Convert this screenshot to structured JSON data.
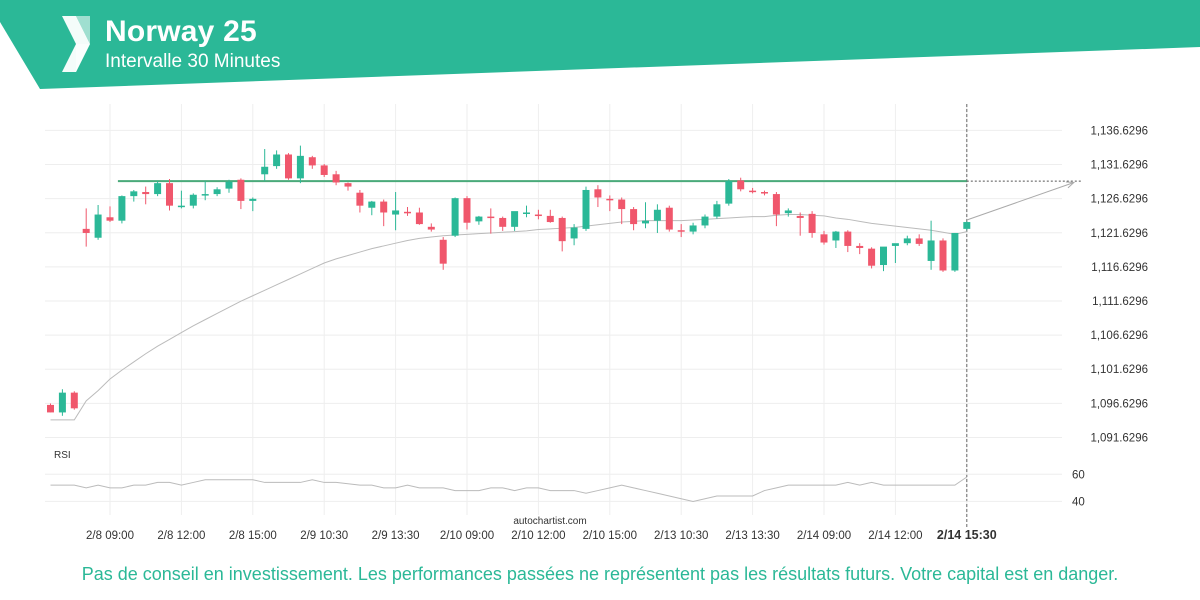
{
  "header": {
    "title": "Norway 25",
    "subtitle": "Intervalle 30 Minutes",
    "brand_color": "#2bb897"
  },
  "watermark": "autochartist.com",
  "disclaimer": "Pas de conseil en investissement. Les performances passées ne représentent pas les résultats futurs. Votre capital est en danger.",
  "chart_data": {
    "type": "candlestick",
    "price_axis": {
      "ticks": [
        "1,136.6296",
        "1,131.6296",
        "1,126.6296",
        "1,121.6296",
        "1,116.6296",
        "1,111.6296",
        "1,106.6296",
        "1,101.6296",
        "1,096.6296",
        "1,091.6296"
      ],
      "tick_values": [
        1136.6296,
        1131.6296,
        1126.6296,
        1121.6296,
        1116.6296,
        1111.6296,
        1106.6296,
        1101.6296,
        1096.6296,
        1091.6296
      ],
      "ylim": [
        1089.5,
        1140.5
      ]
    },
    "x_axis": {
      "labels": [
        "2/8 09:00",
        "2/8 12:00",
        "2/8 15:00",
        "2/9 10:30",
        "2/9 13:30",
        "2/10 09:00",
        "2/10 12:00",
        "2/10 15:00",
        "2/13 10:30",
        "2/13 13:30",
        "2/14 09:00",
        "2/14 12:00",
        "2/14 15:30"
      ],
      "label_indices": [
        5,
        11,
        17,
        23,
        29,
        35,
        41,
        47,
        53,
        59,
        65,
        71,
        77
      ],
      "highlighted": "2/14 15:30"
    },
    "colors": {
      "up": "#2bb897",
      "down": "#f0576c",
      "level": "#4aaa7a",
      "moving_average": "#bbbbbb",
      "rsi": "#bbbbbb"
    },
    "candles": [
      {
        "o": 1096.4,
        "h": 1096.6,
        "l": 1095.3,
        "c": 1095.3
      },
      {
        "o": 1095.3,
        "h": 1098.7,
        "l": 1094.8,
        "c": 1098.2
      },
      {
        "o": 1098.2,
        "h": 1098.4,
        "l": 1095.7,
        "c": 1095.9
      },
      {
        "o": 1122.2,
        "h": 1125.2,
        "l": 1119.6,
        "c": 1121.6
      },
      {
        "o": 1120.9,
        "h": 1125.7,
        "l": 1120.6,
        "c": 1124.3
      },
      {
        "o": 1123.9,
        "h": 1125.5,
        "l": 1123.2,
        "c": 1123.4
      },
      {
        "o": 1123.4,
        "h": 1127.1,
        "l": 1123.0,
        "c": 1127.0
      },
      {
        "o": 1127.0,
        "h": 1127.9,
        "l": 1126.2,
        "c": 1127.7
      },
      {
        "o": 1127.6,
        "h": 1128.4,
        "l": 1125.8,
        "c": 1127.3
      },
      {
        "o": 1127.3,
        "h": 1129.2,
        "l": 1127.0,
        "c": 1128.9
      },
      {
        "o": 1128.9,
        "h": 1129.5,
        "l": 1124.9,
        "c": 1125.6
      },
      {
        "o": 1125.6,
        "h": 1127.8,
        "l": 1125.2,
        "c": 1125.6
      },
      {
        "o": 1125.6,
        "h": 1127.4,
        "l": 1125.2,
        "c": 1127.2
      },
      {
        "o": 1127.2,
        "h": 1129.2,
        "l": 1126.4,
        "c": 1127.3
      },
      {
        "o": 1127.3,
        "h": 1128.3,
        "l": 1127.0,
        "c": 1128.0
      },
      {
        "o": 1128.1,
        "h": 1129.4,
        "l": 1127.5,
        "c": 1129.1
      },
      {
        "o": 1129.4,
        "h": 1129.6,
        "l": 1125.1,
        "c": 1126.3
      },
      {
        "o": 1126.3,
        "h": 1126.8,
        "l": 1124.8,
        "c": 1126.6
      },
      {
        "o": 1130.2,
        "h": 1133.9,
        "l": 1129.2,
        "c": 1131.3
      },
      {
        "o": 1131.4,
        "h": 1133.7,
        "l": 1131.0,
        "c": 1133.1
      },
      {
        "o": 1133.1,
        "h": 1133.3,
        "l": 1129.4,
        "c": 1129.6
      },
      {
        "o": 1129.6,
        "h": 1134.4,
        "l": 1128.9,
        "c": 1132.9
      },
      {
        "o": 1132.7,
        "h": 1132.9,
        "l": 1131.0,
        "c": 1131.5
      },
      {
        "o": 1131.5,
        "h": 1131.7,
        "l": 1129.8,
        "c": 1130.1
      },
      {
        "o": 1130.2,
        "h": 1130.7,
        "l": 1128.6,
        "c": 1129.0
      },
      {
        "o": 1128.9,
        "h": 1129.0,
        "l": 1127.8,
        "c": 1128.4
      },
      {
        "o": 1127.5,
        "h": 1127.9,
        "l": 1124.6,
        "c": 1125.6
      },
      {
        "o": 1125.3,
        "h": 1126.3,
        "l": 1124.2,
        "c": 1126.2
      },
      {
        "o": 1126.2,
        "h": 1126.5,
        "l": 1122.6,
        "c": 1124.6
      },
      {
        "o": 1124.3,
        "h": 1127.6,
        "l": 1122.0,
        "c": 1124.9
      },
      {
        "o": 1124.7,
        "h": 1125.4,
        "l": 1124.1,
        "c": 1124.6
      },
      {
        "o": 1124.6,
        "h": 1125.3,
        "l": 1122.8,
        "c": 1122.9
      },
      {
        "o": 1122.5,
        "h": 1123.0,
        "l": 1121.8,
        "c": 1122.1
      },
      {
        "o": 1120.6,
        "h": 1121.0,
        "l": 1116.2,
        "c": 1117.1
      },
      {
        "o": 1121.2,
        "h": 1126.8,
        "l": 1121.0,
        "c": 1126.7
      },
      {
        "o": 1126.7,
        "h": 1127.0,
        "l": 1122.1,
        "c": 1123.1
      },
      {
        "o": 1123.3,
        "h": 1124.1,
        "l": 1122.8,
        "c": 1124.0
      },
      {
        "o": 1124.0,
        "h": 1125.2,
        "l": 1121.5,
        "c": 1123.8
      },
      {
        "o": 1123.8,
        "h": 1124.0,
        "l": 1121.9,
        "c": 1122.5
      },
      {
        "o": 1122.5,
        "h": 1124.6,
        "l": 1121.9,
        "c": 1124.8
      },
      {
        "o": 1124.5,
        "h": 1125.6,
        "l": 1123.9,
        "c": 1124.6
      },
      {
        "o": 1124.3,
        "h": 1125.0,
        "l": 1123.6,
        "c": 1124.1
      },
      {
        "o": 1124.1,
        "h": 1125.0,
        "l": 1123.1,
        "c": 1123.2
      },
      {
        "o": 1123.8,
        "h": 1124.0,
        "l": 1118.9,
        "c": 1120.4
      },
      {
        "o": 1120.8,
        "h": 1122.9,
        "l": 1119.8,
        "c": 1122.4
      },
      {
        "o": 1122.2,
        "h": 1128.4,
        "l": 1121.9,
        "c": 1127.9
      },
      {
        "o": 1128.0,
        "h": 1128.6,
        "l": 1125.4,
        "c": 1126.8
      },
      {
        "o": 1126.6,
        "h": 1127.1,
        "l": 1124.8,
        "c": 1126.5
      },
      {
        "o": 1126.5,
        "h": 1126.8,
        "l": 1122.9,
        "c": 1125.1
      },
      {
        "o": 1125.1,
        "h": 1125.4,
        "l": 1122.0,
        "c": 1122.9
      },
      {
        "o": 1123.0,
        "h": 1126.1,
        "l": 1122.3,
        "c": 1123.4
      },
      {
        "o": 1123.4,
        "h": 1125.8,
        "l": 1121.6,
        "c": 1125.0
      },
      {
        "o": 1125.3,
        "h": 1125.6,
        "l": 1121.8,
        "c": 1122.1
      },
      {
        "o": 1122.0,
        "h": 1122.9,
        "l": 1121.0,
        "c": 1121.9
      },
      {
        "o": 1121.8,
        "h": 1123.1,
        "l": 1121.4,
        "c": 1122.7
      },
      {
        "o": 1122.7,
        "h": 1124.3,
        "l": 1122.3,
        "c": 1124.0
      },
      {
        "o": 1124.0,
        "h": 1126.3,
        "l": 1123.7,
        "c": 1125.8
      },
      {
        "o": 1125.9,
        "h": 1129.5,
        "l": 1125.6,
        "c": 1129.2
      },
      {
        "o": 1129.3,
        "h": 1129.7,
        "l": 1127.7,
        "c": 1128.0
      },
      {
        "o": 1127.8,
        "h": 1128.2,
        "l": 1127.4,
        "c": 1127.6
      },
      {
        "o": 1127.6,
        "h": 1127.8,
        "l": 1127.1,
        "c": 1127.4
      },
      {
        "o": 1127.3,
        "h": 1127.6,
        "l": 1122.6,
        "c": 1124.3
      },
      {
        "o": 1124.5,
        "h": 1125.2,
        "l": 1124.0,
        "c": 1124.9
      },
      {
        "o": 1124.1,
        "h": 1124.6,
        "l": 1121.2,
        "c": 1123.8
      },
      {
        "o": 1124.4,
        "h": 1124.8,
        "l": 1120.9,
        "c": 1121.6
      },
      {
        "o": 1121.4,
        "h": 1121.9,
        "l": 1119.9,
        "c": 1120.2
      },
      {
        "o": 1120.5,
        "h": 1121.9,
        "l": 1119.4,
        "c": 1121.8
      },
      {
        "o": 1121.8,
        "h": 1122.0,
        "l": 1118.8,
        "c": 1119.7
      },
      {
        "o": 1119.7,
        "h": 1120.1,
        "l": 1118.5,
        "c": 1119.4
      },
      {
        "o": 1119.3,
        "h": 1119.5,
        "l": 1116.4,
        "c": 1116.8
      },
      {
        "o": 1116.9,
        "h": 1119.5,
        "l": 1116.0,
        "c": 1119.6
      },
      {
        "o": 1119.7,
        "h": 1119.9,
        "l": 1117.2,
        "c": 1120.1
      },
      {
        "o": 1120.1,
        "h": 1121.2,
        "l": 1119.8,
        "c": 1120.8
      },
      {
        "o": 1120.8,
        "h": 1121.4,
        "l": 1119.7,
        "c": 1120.0
      },
      {
        "o": 1117.5,
        "h": 1123.4,
        "l": 1116.2,
        "c": 1120.5
      },
      {
        "o": 1120.5,
        "h": 1120.8,
        "l": 1115.9,
        "c": 1116.1
      },
      {
        "o": 1116.1,
        "h": 1121.6,
        "l": 1115.9,
        "c": 1121.6
      },
      {
        "o": 1122.2,
        "h": 1123.3,
        "l": 1122.0,
        "c": 1123.2
      }
    ],
    "moving_average": [
      1094.2,
      1094.2,
      1094.2,
      1097.0,
      1098.5,
      1100.2,
      1101.5,
      1102.7,
      1103.9,
      1105.0,
      1106.0,
      1107.0,
      1108.0,
      1108.9,
      1109.8,
      1110.7,
      1111.6,
      1112.4,
      1113.2,
      1114.0,
      1114.8,
      1115.6,
      1116.4,
      1117.2,
      1117.8,
      1118.3,
      1118.8,
      1119.3,
      1119.7,
      1120.1,
      1120.5,
      1120.8,
      1121.0,
      1121.2,
      1121.3,
      1121.4,
      1121.5,
      1121.6,
      1121.7,
      1121.8,
      1121.9,
      1122.1,
      1122.2,
      1122.3,
      1122.4,
      1122.6,
      1122.8,
      1123.0,
      1123.2,
      1123.3,
      1123.4,
      1123.4,
      1123.4,
      1123.4,
      1123.5,
      1123.6,
      1123.7,
      1123.8,
      1123.9,
      1124.0,
      1124.0,
      1124.2,
      1124.3,
      1124.3,
      1124.2,
      1124.1,
      1123.8,
      1123.6,
      1123.3,
      1123.0,
      1122.8,
      1122.6,
      1122.4,
      1122.2,
      1122.0,
      1121.7,
      1121.4,
      1121.8
    ],
    "resistance_level": {
      "value": 1129.2,
      "from_index": 6,
      "to_index": 77
    },
    "forecast": {
      "from_index": 77,
      "from_value": 1123.5,
      "to_index": 86,
      "to_value": 1129.0
    },
    "rsi": {
      "label": "RSI",
      "ticks": [
        60,
        40
      ],
      "ylim": [
        30,
        72
      ],
      "values": [
        52,
        52,
        52,
        50,
        52,
        50,
        50,
        52,
        52,
        54,
        54,
        52,
        54,
        56,
        56,
        56,
        56,
        56,
        54,
        54,
        54,
        54,
        56,
        54,
        54,
        53,
        52,
        52,
        50,
        50,
        52,
        50,
        50,
        50,
        48,
        48,
        48,
        50,
        50,
        48,
        50,
        50,
        48,
        48,
        48,
        46,
        48,
        50,
        52,
        50,
        48,
        46,
        44,
        42,
        40,
        42,
        44,
        44,
        44,
        44,
        48,
        50,
        52,
        52,
        52,
        52,
        52,
        54,
        52,
        54,
        52,
        52,
        52,
        52,
        52,
        52,
        52,
        58
      ]
    }
  }
}
